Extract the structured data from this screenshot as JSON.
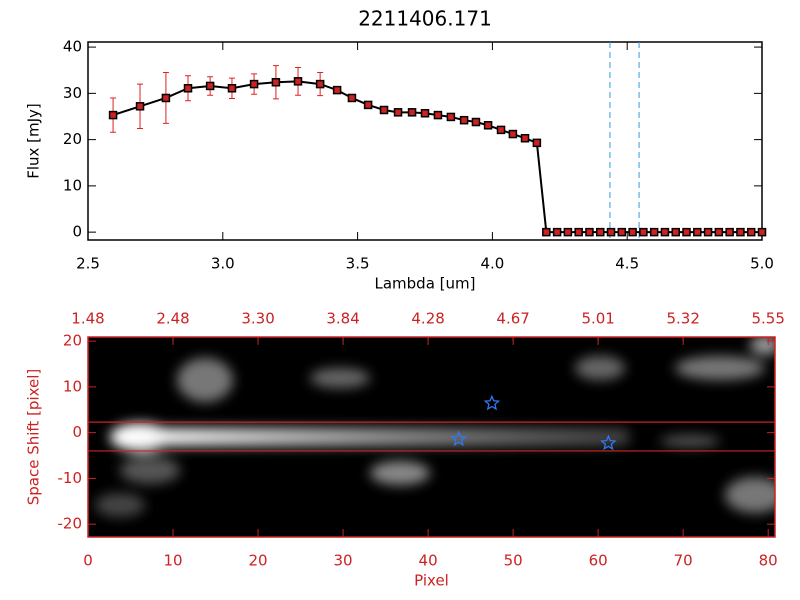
{
  "chart_data": [
    {
      "type": "line",
      "title": "2211406.171",
      "x_label": "Lambda [um]",
      "y_label": "Flux [mJy]",
      "x": [
        2.593,
        2.693,
        2.789,
        2.871,
        2.953,
        3.034,
        3.116,
        3.197,
        3.279,
        3.361,
        3.424,
        3.479,
        3.539,
        3.598,
        3.65,
        3.702,
        3.75,
        3.798,
        3.846,
        3.895,
        3.939,
        3.984,
        4.032,
        4.076,
        4.121,
        4.165,
        4.2,
        4.24,
        4.28,
        4.32,
        4.36,
        4.4,
        4.44,
        4.48,
        4.52,
        4.56,
        4.6,
        4.64,
        4.68,
        4.72,
        4.76,
        4.8,
        4.84,
        4.88,
        4.92,
        4.96,
        5.0
      ],
      "values": [
        25.3,
        27.2,
        29.0,
        31.1,
        31.6,
        31.1,
        32.0,
        32.4,
        32.6,
        32.0,
        30.7,
        29.0,
        27.5,
        26.4,
        25.9,
        25.9,
        25.7,
        25.3,
        24.9,
        24.2,
        23.8,
        23.1,
        22.1,
        21.2,
        20.3,
        19.3,
        0,
        0,
        0,
        0,
        0,
        0,
        0,
        0,
        0,
        0,
        0,
        0,
        0,
        0,
        0,
        0,
        0,
        0,
        0,
        0,
        0
      ],
      "errors": [
        3.7,
        4.8,
        5.5,
        2.7,
        2.0,
        2.2,
        2.2,
        3.6,
        3.0,
        2.5,
        null,
        null,
        null,
        null,
        null,
        null,
        null,
        null,
        null,
        null,
        null,
        null,
        null,
        null,
        null,
        null,
        null,
        null,
        null,
        null,
        null,
        null,
        null,
        null,
        null,
        null,
        null,
        null,
        null,
        null,
        null,
        null,
        null,
        null,
        null,
        null,
        null
      ],
      "color": "#000000",
      "marker_color": "#cc2222",
      "error_color": "#dd2222",
      "vlines": [
        4.436,
        4.544
      ],
      "vline_color": "#3399dd",
      "xlim": [
        2.5,
        5.0
      ],
      "ylim": [
        -1.7,
        41.1
      ],
      "xticks": [
        2.5,
        {
          "value": 3,
          "label": "3.0"
        },
        3.5,
        {
          "value": 4,
          "label": "4.0"
        },
        4.5,
        {
          "value": 5,
          "label": "5.0"
        }
      ],
      "yticks": [
        0,
        10,
        20,
        30,
        40
      ]
    },
    {
      "type": "heatmap",
      "x_label": "Pixel",
      "y_label": "Space Shift [pixel]",
      "axis_color": "#cc2222",
      "xlim": [
        0,
        80.8
      ],
      "ylim": [
        -22.8,
        20.9
      ],
      "xticks": [
        0,
        10,
        20,
        30,
        40,
        50,
        60,
        70,
        80
      ],
      "yticks": [
        -20,
        -10,
        0,
        10,
        20
      ],
      "x2ticks": [
        {
          "value": 0,
          "label": "1.48"
        },
        {
          "value": 10,
          "label": "2.48"
        },
        {
          "value": 20,
          "label": "3.30"
        },
        {
          "value": 30,
          "label": "3.84"
        },
        {
          "value": 40,
          "label": "4.28"
        },
        {
          "value": 50,
          "label": "4.67"
        },
        {
          "value": 60,
          "label": "5.01"
        },
        {
          "value": 70,
          "label": "5.32"
        },
        {
          "value": 80,
          "label": "5.55"
        }
      ],
      "hlines": [
        2.3,
        -4.0
      ],
      "hline_color": "#cc2222",
      "stars": {
        "x": [
          47.5,
          43.6,
          61.2
        ],
        "y": [
          6.4,
          -1.4,
          -2.3
        ],
        "color": "#3377ee"
      }
    }
  ]
}
